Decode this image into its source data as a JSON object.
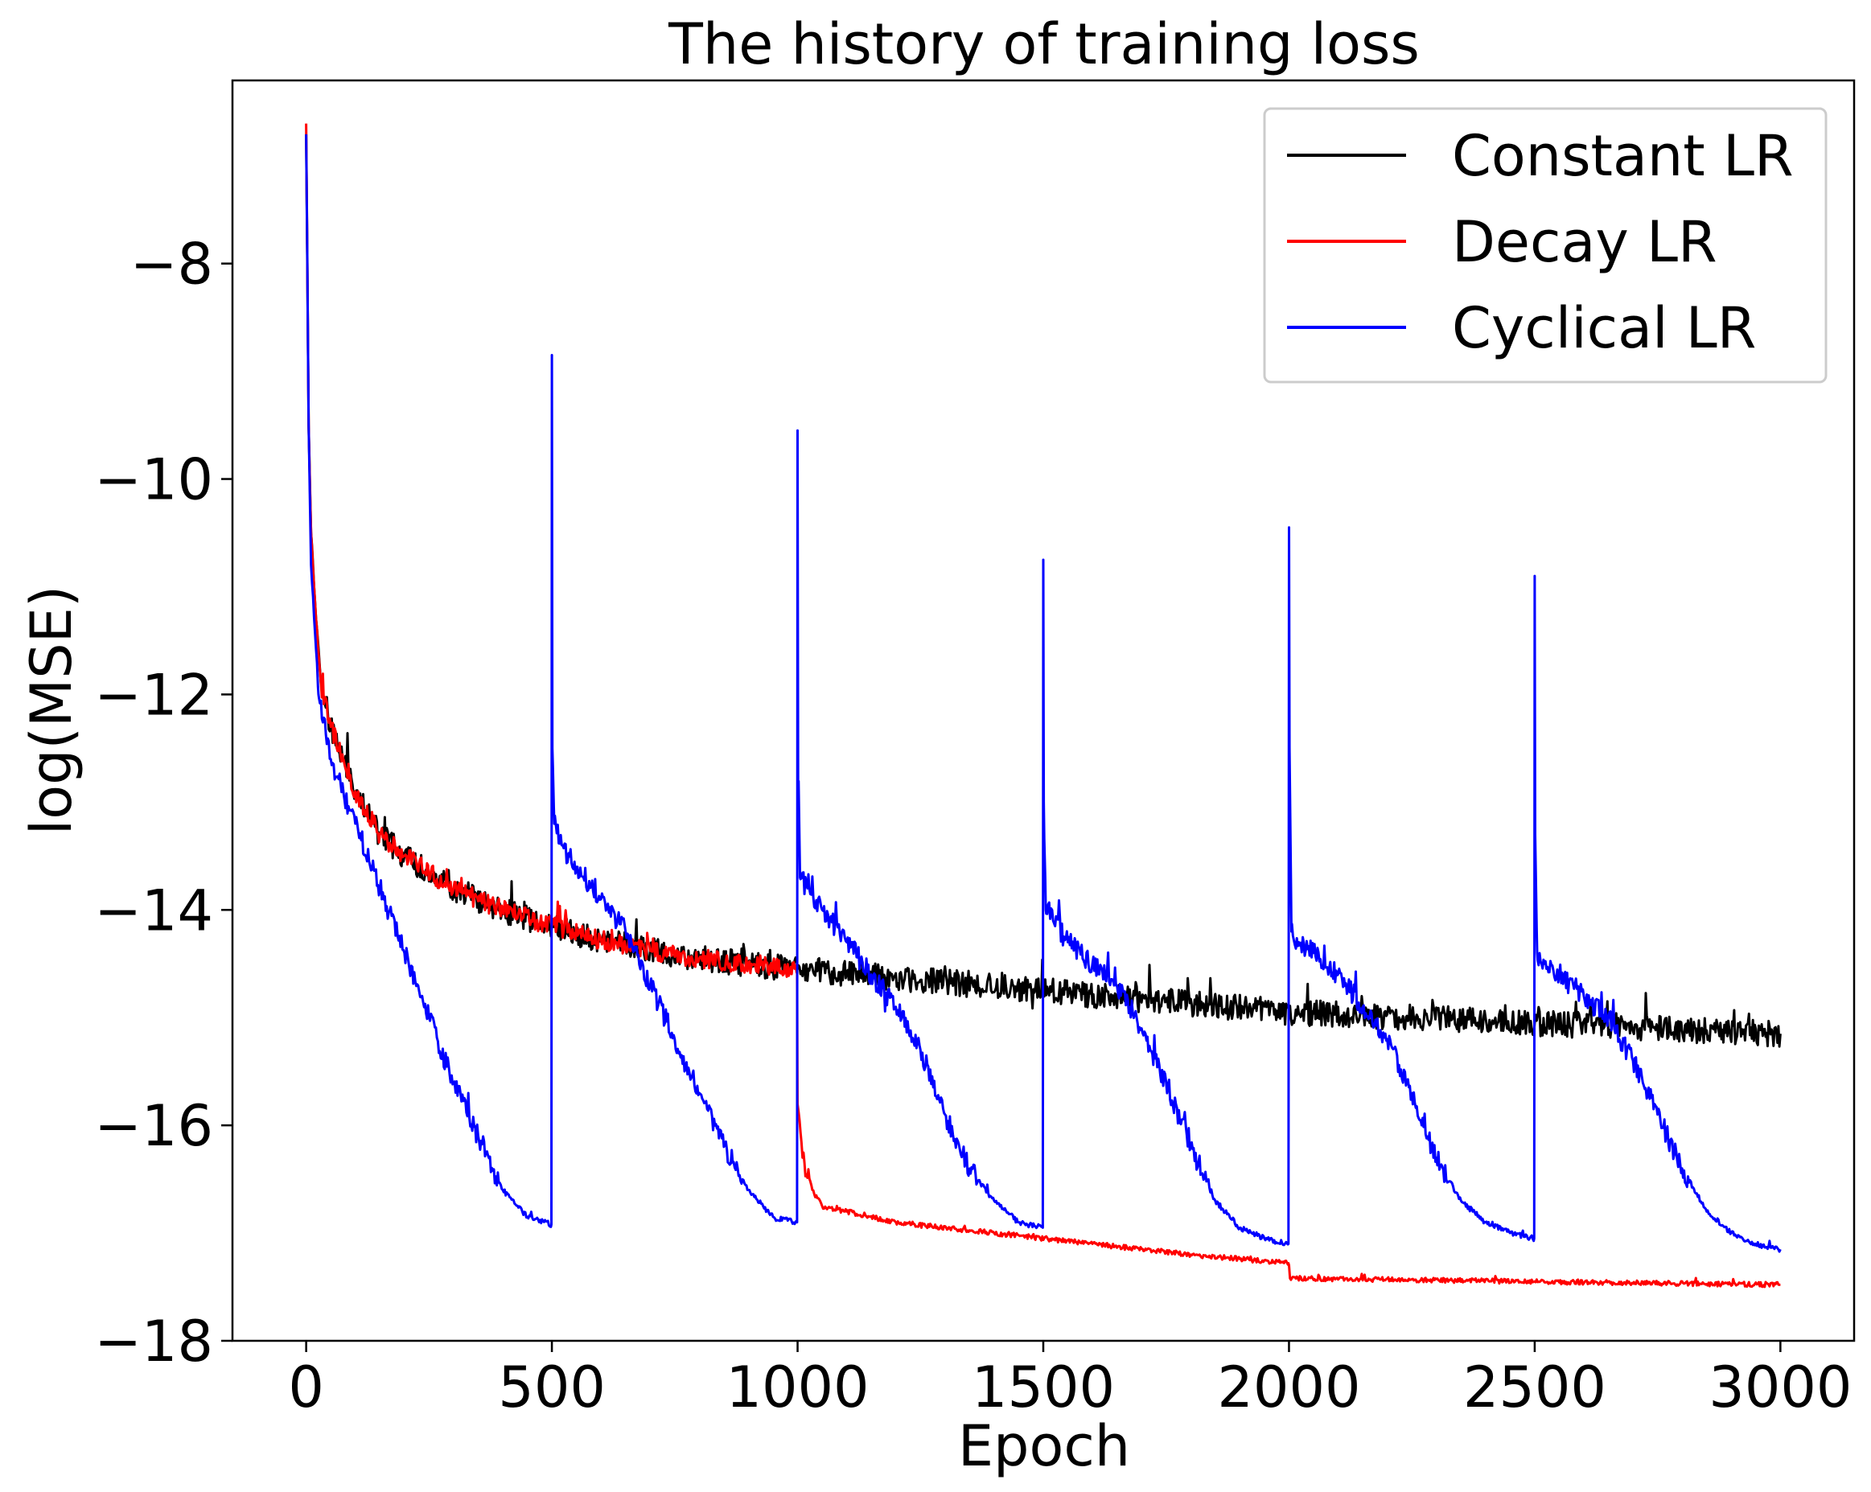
{
  "chart_data": {
    "type": "line",
    "title": "The history of training loss",
    "xlabel": "Epoch",
    "ylabel": "log(MSE)",
    "xlim": [
      -150,
      3150
    ],
    "ylim": [
      -18,
      -6.3
    ],
    "xticks": [
      0,
      500,
      1000,
      1500,
      2000,
      2500,
      3000
    ],
    "xtick_labels": [
      "0",
      "500",
      "1000",
      "1500",
      "2000",
      "2500",
      "3000"
    ],
    "yticks": [
      -18,
      -16,
      -14,
      -12,
      -10,
      -8
    ],
    "ytick_labels": [
      "−18",
      "−16",
      "−14",
      "−12",
      "−10",
      "−8"
    ],
    "grid": false,
    "legend_position": "top-right",
    "series": [
      {
        "name": "Constant LR",
        "color": "#000000",
        "noise": 0.12,
        "x": [
          0,
          5,
          10,
          20,
          30,
          50,
          75,
          100,
          150,
          200,
          300,
          400,
          500,
          600,
          700,
          800,
          900,
          1000,
          1250,
          1500,
          1750,
          2000,
          2250,
          2500,
          2750,
          3000
        ],
        "y": [
          -6.8,
          -9.5,
          -10.5,
          -11.3,
          -11.9,
          -12.3,
          -12.6,
          -12.9,
          -13.3,
          -13.5,
          -13.8,
          -14.0,
          -14.15,
          -14.28,
          -14.38,
          -14.45,
          -14.5,
          -14.55,
          -14.65,
          -14.75,
          -14.85,
          -14.95,
          -15.0,
          -15.05,
          -15.1,
          -15.15
        ]
      },
      {
        "name": "Decay LR",
        "color": "#ff0000",
        "noise": 0.09,
        "x": [
          0,
          5,
          10,
          20,
          30,
          50,
          75,
          100,
          150,
          200,
          300,
          400,
          500,
          600,
          700,
          800,
          900,
          999,
          1000,
          1010,
          1030,
          1050,
          1100,
          1200,
          1400,
          1600,
          1800,
          1999,
          2000,
          2002,
          2500,
          3000
        ],
        "y": [
          -6.7,
          -9.5,
          -10.5,
          -11.3,
          -11.9,
          -12.3,
          -12.6,
          -12.9,
          -13.3,
          -13.5,
          -13.8,
          -14.0,
          -14.15,
          -14.28,
          -14.38,
          -14.45,
          -14.5,
          -14.55,
          -15.8,
          -16.3,
          -16.6,
          -16.75,
          -16.8,
          -16.9,
          -17.0,
          -17.1,
          -17.2,
          -17.28,
          -17.3,
          -17.42,
          -17.45,
          -17.48
        ]
      },
      {
        "name": "Cyclical LR",
        "color": "#0000ff",
        "noise": 0.1,
        "x": [
          0,
          5,
          10,
          25,
          50,
          100,
          150,
          200,
          250,
          300,
          350,
          400,
          450,
          499,
          500,
          501,
          505,
          520,
          550,
          600,
          650,
          700,
          750,
          800,
          850,
          900,
          950,
          999,
          1000,
          1001,
          1005,
          1020,
          1050,
          1100,
          1150,
          1200,
          1250,
          1300,
          1350,
          1400,
          1450,
          1499,
          1500,
          1501,
          1505,
          1520,
          1550,
          1600,
          1650,
          1700,
          1750,
          1800,
          1850,
          1900,
          1950,
          1999,
          2000,
          2001,
          2005,
          2020,
          2050,
          2100,
          2150,
          2200,
          2250,
          2300,
          2350,
          2400,
          2450,
          2499,
          2500,
          2501,
          2505,
          2520,
          2550,
          2600,
          2650,
          2700,
          2750,
          2800,
          2850,
          2900,
          2950,
          3000
        ],
        "y": [
          -6.8,
          -9.5,
          -10.8,
          -12.0,
          -12.6,
          -13.2,
          -13.8,
          -14.4,
          -15.0,
          -15.6,
          -16.1,
          -16.6,
          -16.85,
          -16.92,
          -8.85,
          -12.5,
          -13.2,
          -13.4,
          -13.6,
          -13.9,
          -14.2,
          -14.7,
          -15.2,
          -15.7,
          -16.2,
          -16.6,
          -16.85,
          -16.9,
          -9.55,
          -12.8,
          -13.7,
          -13.8,
          -14.0,
          -14.3,
          -14.6,
          -14.9,
          -15.3,
          -15.9,
          -16.4,
          -16.7,
          -16.9,
          -16.95,
          -10.75,
          -13.0,
          -14.0,
          -14.1,
          -14.3,
          -14.5,
          -14.7,
          -15.1,
          -15.6,
          -16.2,
          -16.7,
          -16.95,
          -17.05,
          -17.1,
          -10.45,
          -12.5,
          -14.2,
          -14.3,
          -14.4,
          -14.6,
          -14.9,
          -15.2,
          -15.7,
          -16.3,
          -16.7,
          -16.9,
          -17.0,
          -17.05,
          -10.9,
          -13.3,
          -14.4,
          -14.5,
          -14.6,
          -14.8,
          -15.0,
          -15.4,
          -15.9,
          -16.4,
          -16.8,
          -17.0,
          -17.1,
          -17.15
        ]
      }
    ]
  }
}
